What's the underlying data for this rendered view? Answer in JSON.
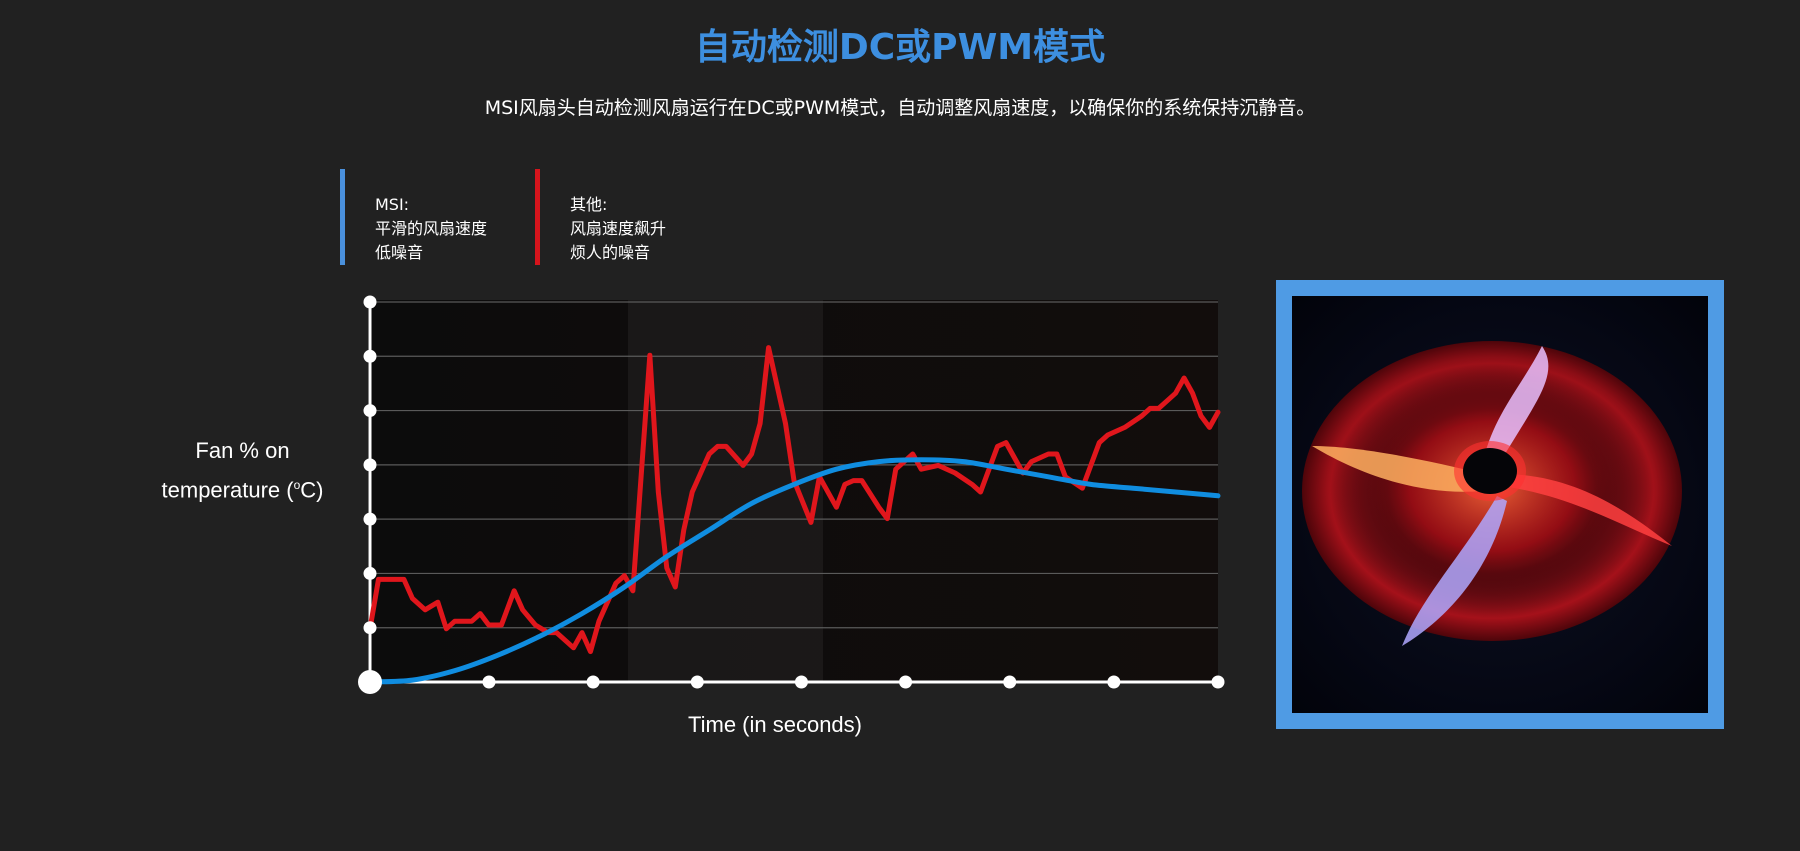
{
  "header": {
    "title": "自动检测DC或PWM模式",
    "subtitle": "MSI风扇头自动检测风扇运行在DC或PWM模式，自动调整风扇速度，以确保你的系统保持沉静音。"
  },
  "legend": {
    "msi": {
      "line1": "MSI:",
      "line2": "平滑的风扇速度",
      "line3": "低噪音",
      "color": "#4a90dc"
    },
    "other": {
      "line1": "其他:",
      "line2": "风扇速度飙升",
      "line3": "烦人的噪音",
      "color": "#d6141c"
    }
  },
  "chart_data": {
    "type": "line",
    "xlabel": "Time (in seconds)",
    "ylabel_line1": "Fan % on",
    "ylabel_line2": "temperature (",
    "ylabel_sup": "o",
    "ylabel_end": "C)",
    "xlim": [
      0,
      100
    ],
    "ylim": [
      0,
      100
    ],
    "grid": true,
    "series": [
      {
        "color": "#e0161c",
        "x": [
          0,
          1,
          3,
          4,
          5,
          6.5,
          8,
          9,
          10,
          12,
          13,
          14,
          15.5,
          17,
          18,
          19.5,
          21,
          22,
          24,
          25,
          26,
          27,
          29,
          30,
          31,
          33,
          34,
          35,
          36,
          37,
          38,
          40,
          41,
          42,
          44,
          45,
          46,
          47,
          49,
          50,
          52,
          53,
          55,
          56,
          57,
          58,
          60,
          61,
          62,
          64,
          65,
          67,
          69,
          71,
          72,
          74,
          75,
          77,
          78,
          80,
          81,
          82,
          84,
          86,
          87,
          89,
          91,
          92,
          93,
          94,
          95,
          96,
          97,
          98,
          99,
          100
        ],
        "y": [
          14,
          27,
          27,
          27,
          22,
          19,
          21,
          14,
          16,
          16,
          18,
          15,
          15,
          24,
          19,
          15,
          13,
          13,
          9,
          13,
          8,
          16,
          26,
          28,
          24,
          86,
          50,
          30,
          25,
          40,
          50,
          60,
          62,
          62,
          57,
          60,
          68,
          88,
          68,
          53,
          42,
          54,
          46,
          52,
          53,
          53,
          46,
          43,
          56,
          60,
          56,
          57,
          55,
          52,
          50,
          62,
          63,
          55,
          58,
          60,
          60,
          54,
          51,
          63,
          65,
          67,
          70,
          72,
          72,
          74,
          76,
          80,
          76,
          70,
          67,
          71
        ],
        "flat": true
      },
      {
        "color": "#108de0",
        "x": [
          0,
          5,
          10,
          15,
          20,
          25,
          30,
          35,
          40,
          45,
          50,
          55,
          60,
          65,
          70,
          75,
          80,
          85,
          90,
          95,
          100
        ],
        "y": [
          0,
          0.5,
          3,
          7,
          12,
          18,
          25,
          33,
          40,
          47,
          52,
          56,
          58,
          58.5,
          58,
          56,
          54,
          52,
          51,
          50,
          49
        ],
        "smooth": true
      }
    ]
  },
  "fan_image": {
    "icon": "fan-photo",
    "border_color": "#4f9be4"
  }
}
